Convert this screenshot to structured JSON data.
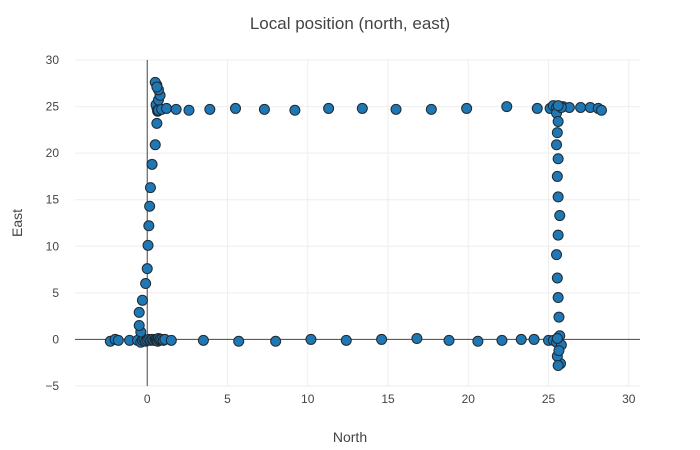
{
  "chart_data": {
    "type": "scatter",
    "title": "Local position (north, east)",
    "xlabel": "North",
    "ylabel": "East",
    "xlim": [
      -4.5,
      30.7
    ],
    "ylim": [
      -5,
      30
    ],
    "xticks": [
      0,
      5,
      10,
      15,
      20,
      25,
      30
    ],
    "yticks": [
      -5,
      0,
      5,
      10,
      15,
      20,
      25,
      30
    ],
    "grid": true,
    "legend": "none",
    "marker_color": "#1f77b4",
    "marker_edge": "#1f2a33",
    "series": [
      {
        "x": [
          -2.3,
          -2.0,
          -1.8,
          -1.1,
          -0.6,
          -0.4,
          -0.3,
          -0.2,
          -0.1,
          0.0,
          0.1,
          0.2,
          0.3,
          0.4,
          0.5,
          0.55,
          0.6,
          0.65,
          0.7,
          0.75,
          0.8,
          0.9,
          1.0,
          1.1,
          1.5,
          3.5,
          5.7,
          8.0,
          10.2,
          12.4,
          14.6,
          16.8,
          18.8,
          20.6,
          22.1,
          23.3,
          24.1,
          25.0,
          25.3,
          25.5,
          25.6,
          25.7,
          25.8,
          25.75,
          25.55,
          25.6,
          25.65,
          -0.4,
          -0.5,
          -0.5,
          -0.3,
          -0.1,
          0.0,
          0.05,
          0.1,
          0.15,
          0.2,
          0.3,
          0.5,
          0.6,
          0.65,
          0.6,
          0.55,
          0.7,
          0.8,
          0.7,
          0.6,
          0.5,
          0.6,
          0.65,
          0.7,
          0.9,
          1.2,
          1.8,
          2.6,
          3.9,
          5.5,
          7.3,
          9.2,
          11.3,
          13.4,
          15.5,
          17.7,
          19.9,
          22.4,
          24.3,
          25.1,
          25.3,
          25.5,
          25.7,
          25.9,
          26.3,
          27.0,
          27.6,
          28.1,
          28.3,
          25.5,
          25.6,
          25.55,
          25.5,
          25.6,
          25.55,
          25.6,
          25.7,
          25.6,
          25.5,
          25.55,
          25.6,
          25.65,
          25.8,
          25.6,
          25.55
        ],
        "y": [
          -0.2,
          0.0,
          -0.1,
          -0.1,
          -0.1,
          -0.3,
          -0.1,
          0.0,
          -0.2,
          -0.1,
          0.0,
          -0.1,
          0.0,
          -0.1,
          0.0,
          -0.1,
          0.0,
          -0.2,
          0.1,
          -0.1,
          0.0,
          0.0,
          -0.1,
          0.0,
          -0.1,
          -0.1,
          -0.2,
          -0.2,
          0.0,
          -0.1,
          0.0,
          0.1,
          -0.1,
          -0.2,
          -0.1,
          0.0,
          0.0,
          -0.1,
          -0.1,
          -0.3,
          0.2,
          0.4,
          -0.6,
          -2.6,
          -1.8,
          -2.8,
          -1.2,
          0.8,
          1.5,
          2.9,
          4.2,
          6.0,
          7.6,
          10.1,
          12.2,
          14.3,
          16.3,
          18.8,
          20.9,
          23.2,
          24.5,
          24.9,
          25.2,
          25.7,
          26.2,
          26.8,
          27.3,
          27.6,
          27.1,
          24.6,
          24.6,
          24.7,
          24.8,
          24.7,
          24.6,
          24.7,
          24.8,
          24.7,
          24.6,
          24.8,
          24.8,
          24.7,
          24.7,
          24.8,
          25.0,
          24.8,
          24.8,
          25.1,
          24.9,
          25.0,
          25.0,
          24.9,
          24.9,
          24.9,
          24.8,
          24.6,
          24.3,
          23.4,
          22.2,
          20.9,
          19.4,
          17.5,
          15.3,
          13.3,
          11.2,
          9.1,
          6.6,
          4.5,
          2.4,
          24.9,
          25.1,
          0.1
        ]
      }
    ]
  }
}
